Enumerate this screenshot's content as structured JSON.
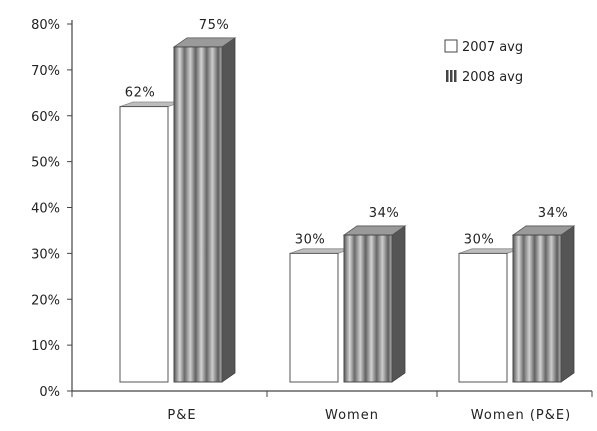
{
  "chart_data": {
    "type": "bar",
    "categories": [
      "P&E",
      "Women",
      "Women (P&E)"
    ],
    "series": [
      {
        "name": "2007 avg",
        "values": [
          62,
          30,
          30
        ],
        "labels": [
          "62%",
          "30%",
          "30%"
        ]
      },
      {
        "name": "2008 avg",
        "values": [
          75,
          34,
          34
        ],
        "labels": [
          "75%",
          "34%",
          "34%"
        ]
      }
    ],
    "y_ticks": [
      "0%",
      "10%",
      "20%",
      "30%",
      "40%",
      "50%",
      "60%",
      "70%",
      "80%"
    ],
    "ylim": [
      0,
      80
    ],
    "grid": false,
    "legend_position": "top-right",
    "title": "",
    "xlabel": "",
    "ylabel": "",
    "colors": {
      "series_2007_fill": "#ffffff",
      "series_2007_top": "#bdbdbd",
      "series_2008_stripe_light": "#c8c8c8",
      "series_2008_stripe_dark": "#6e6e6e",
      "series_2008_side": "#555555",
      "axis": "#444444"
    }
  }
}
